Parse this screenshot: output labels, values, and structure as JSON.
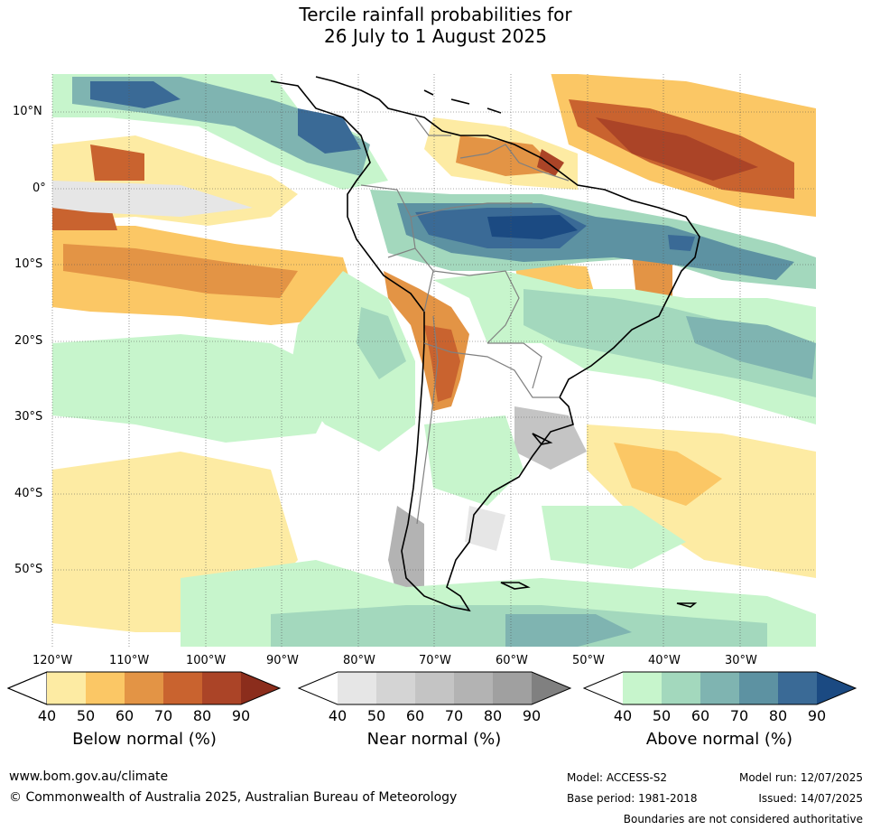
{
  "title": {
    "line1": "Tercile rainfall probabilities for",
    "line2": "26 July to 1 August 2025"
  },
  "map": {
    "lat_labels": [
      "10°N",
      "0°",
      "10°S",
      "20°S",
      "30°S",
      "40°S",
      "50°S"
    ],
    "lon_labels": [
      "120°W",
      "110°W",
      "100°W",
      "90°W",
      "80°W",
      "70°W",
      "60°W",
      "50°W",
      "40°W",
      "30°W"
    ]
  },
  "legends": [
    {
      "label": "Below normal (%)",
      "ticks": [
        "40",
        "50",
        "60",
        "70",
        "80",
        "90"
      ],
      "colors": [
        "#fdeba3",
        "#fbc765",
        "#e39445",
        "#c9632f",
        "#ab4427",
        "#8b2d1c"
      ]
    },
    {
      "label": "Near normal (%)",
      "ticks": [
        "40",
        "50",
        "60",
        "70",
        "80",
        "90"
      ],
      "colors": [
        "#e6e6e6",
        "#d4d4d4",
        "#c4c4c4",
        "#b3b3b3",
        "#a0a0a0",
        "#808080"
      ]
    },
    {
      "label": "Above normal (%)",
      "ticks": [
        "40",
        "50",
        "60",
        "70",
        "80",
        "90"
      ],
      "colors": [
        "#c7f5cc",
        "#a3d8bd",
        "#7fb4b1",
        "#5d92a2",
        "#3a6a96",
        "#1b4a82"
      ]
    }
  ],
  "footer": {
    "url": "www.bom.gov.au/climate",
    "copyright": "© Commonwealth of Australia 2025, Australian Bureau of Meteorology",
    "model": "Model: ACCESS-S2",
    "base_period": "Base period: 1981-2018",
    "model_run": "Model run: 12/07/2025",
    "issued": "Issued: 14/07/2025",
    "disclaimer": "Boundaries are not considered authoritative"
  }
}
